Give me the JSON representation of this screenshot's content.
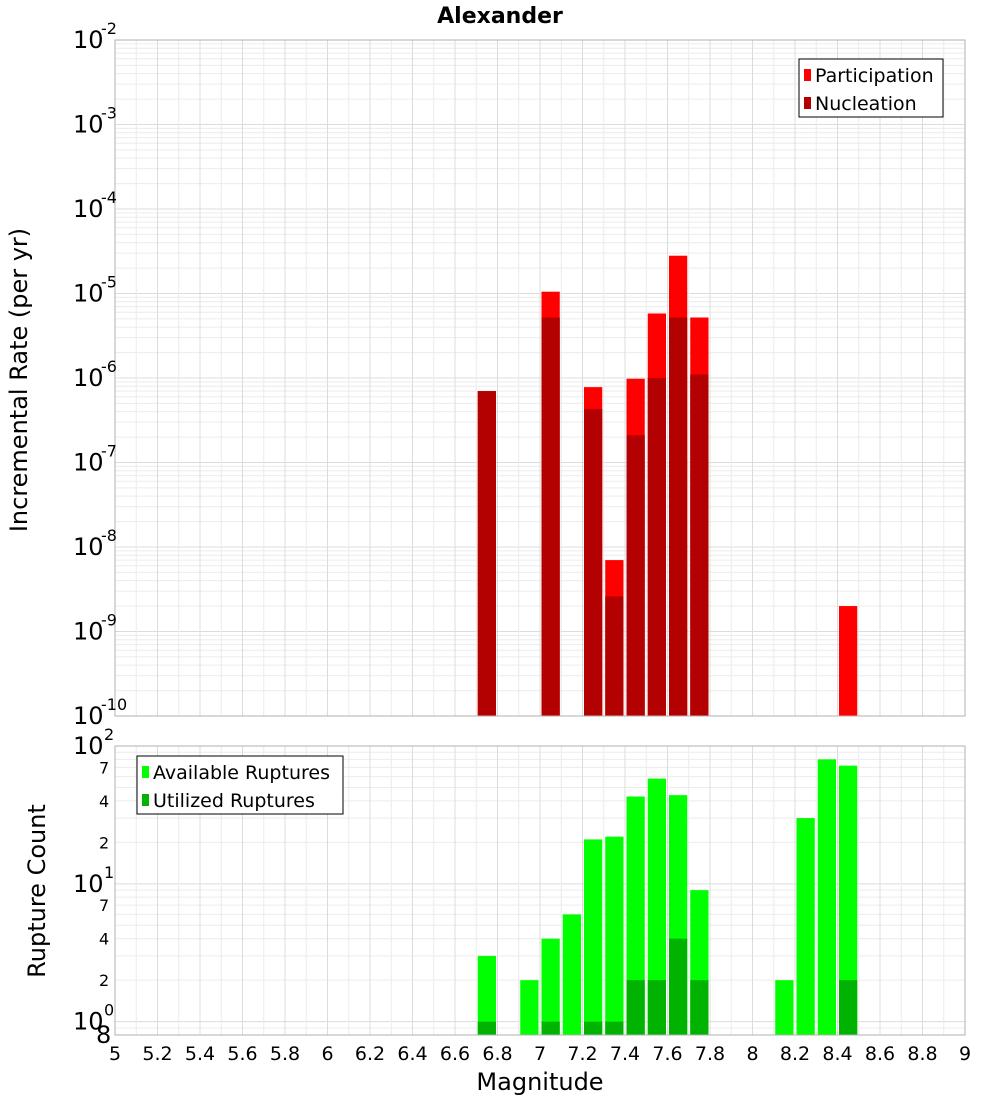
{
  "chart_data": {
    "type": "bar",
    "title": "Alexander",
    "xlabel": "Magnitude",
    "xlim": [
      5,
      9
    ],
    "xticks": [
      "5",
      "5.2",
      "5.4",
      "5.6",
      "5.8",
      "6",
      "6.2",
      "6.4",
      "6.6",
      "6.8",
      "7",
      "7.2",
      "7.4",
      "7.6",
      "7.8",
      "8",
      "8.2",
      "8.4",
      "8.6",
      "8.8",
      "9"
    ],
    "bin_width": 0.1,
    "top": {
      "ylabel": "Incremental Rate (per yr)",
      "yscale": "log",
      "ylim": [
        1e-10,
        0.01
      ],
      "y_tick_labels": [
        {
          "base": "10",
          "exp": "-2",
          "value": 0.01
        },
        {
          "base": "10",
          "exp": "-3",
          "value": 0.001
        },
        {
          "base": "10",
          "exp": "-4",
          "value": 0.0001
        },
        {
          "base": "10",
          "exp": "-5",
          "value": 1e-05
        },
        {
          "base": "10",
          "exp": "-6",
          "value": 1e-06
        },
        {
          "base": "10",
          "exp": "-7",
          "value": 1e-07
        },
        {
          "base": "10",
          "exp": "-8",
          "value": 1e-08
        },
        {
          "base": "10",
          "exp": "-9",
          "value": 1e-09
        },
        {
          "base": "10",
          "exp": "-10",
          "value": 1e-10
        }
      ],
      "legend": [
        "Participation",
        "Nucleation"
      ],
      "series": [
        {
          "name": "Participation",
          "color": "#ff0000",
          "points": [
            {
              "x": 6.75,
              "y": 7e-07
            },
            {
              "x": 7.05,
              "y": 1.05e-05
            },
            {
              "x": 7.25,
              "y": 7.8e-07
            },
            {
              "x": 7.35,
              "y": 7e-09
            },
            {
              "x": 7.45,
              "y": 9.8e-07
            },
            {
              "x": 7.55,
              "y": 5.8e-06
            },
            {
              "x": 7.65,
              "y": 2.8e-05
            },
            {
              "x": 7.75,
              "y": 5.2e-06
            },
            {
              "x": 8.45,
              "y": 2e-09
            }
          ]
        },
        {
          "name": "Nucleation",
          "color": "#b30000",
          "points": [
            {
              "x": 6.75,
              "y": 7e-07
            },
            {
              "x": 7.05,
              "y": 5.2e-06
            },
            {
              "x": 7.25,
              "y": 4.3e-07
            },
            {
              "x": 7.35,
              "y": 2.6e-09
            },
            {
              "x": 7.45,
              "y": 2.1e-07
            },
            {
              "x": 7.55,
              "y": 1e-06
            },
            {
              "x": 7.65,
              "y": 5.2e-06
            },
            {
              "x": 7.75,
              "y": 1.1e-06
            }
          ]
        }
      ]
    },
    "bottom": {
      "ylabel": "Rupture Count",
      "yscale": "log",
      "ylim": [
        0.8,
        100
      ],
      "y_tick_labels": [
        {
          "kind": "major",
          "base": "10",
          "exp": "2",
          "value": 100
        },
        {
          "kind": "minor",
          "text": "7",
          "value": 70
        },
        {
          "kind": "minor",
          "text": "4",
          "value": 40
        },
        {
          "kind": "minor",
          "text": "2",
          "value": 20
        },
        {
          "kind": "major",
          "base": "10",
          "exp": "1",
          "value": 10
        },
        {
          "kind": "minor",
          "text": "7",
          "value": 7
        },
        {
          "kind": "minor",
          "text": "4",
          "value": 4
        },
        {
          "kind": "minor",
          "text": "2",
          "value": 2
        },
        {
          "kind": "major",
          "base": "10",
          "exp": "0",
          "value": 1
        },
        {
          "kind": "minor",
          "text": "8",
          "value": 0.8
        }
      ],
      "legend": [
        "Available Ruptures",
        "Utilized Ruptures"
      ],
      "series": [
        {
          "name": "Available Ruptures",
          "color": "#00ff00",
          "points": [
            {
              "x": 6.75,
              "y": 3
            },
            {
              "x": 6.95,
              "y": 2
            },
            {
              "x": 7.05,
              "y": 4
            },
            {
              "x": 7.15,
              "y": 6
            },
            {
              "x": 7.25,
              "y": 21
            },
            {
              "x": 7.35,
              "y": 22
            },
            {
              "x": 7.45,
              "y": 43
            },
            {
              "x": 7.55,
              "y": 58
            },
            {
              "x": 7.65,
              "y": 44
            },
            {
              "x": 7.75,
              "y": 9
            },
            {
              "x": 8.15,
              "y": 2
            },
            {
              "x": 8.25,
              "y": 30
            },
            {
              "x": 8.35,
              "y": 80
            },
            {
              "x": 8.45,
              "y": 72
            }
          ]
        },
        {
          "name": "Utilized Ruptures",
          "color": "#00b300",
          "points": [
            {
              "x": 6.75,
              "y": 1
            },
            {
              "x": 7.05,
              "y": 1
            },
            {
              "x": 7.25,
              "y": 1
            },
            {
              "x": 7.35,
              "y": 1
            },
            {
              "x": 7.45,
              "y": 2
            },
            {
              "x": 7.55,
              "y": 2
            },
            {
              "x": 7.65,
              "y": 4
            },
            {
              "x": 7.75,
              "y": 2
            },
            {
              "x": 8.45,
              "y": 2
            }
          ]
        }
      ]
    }
  }
}
